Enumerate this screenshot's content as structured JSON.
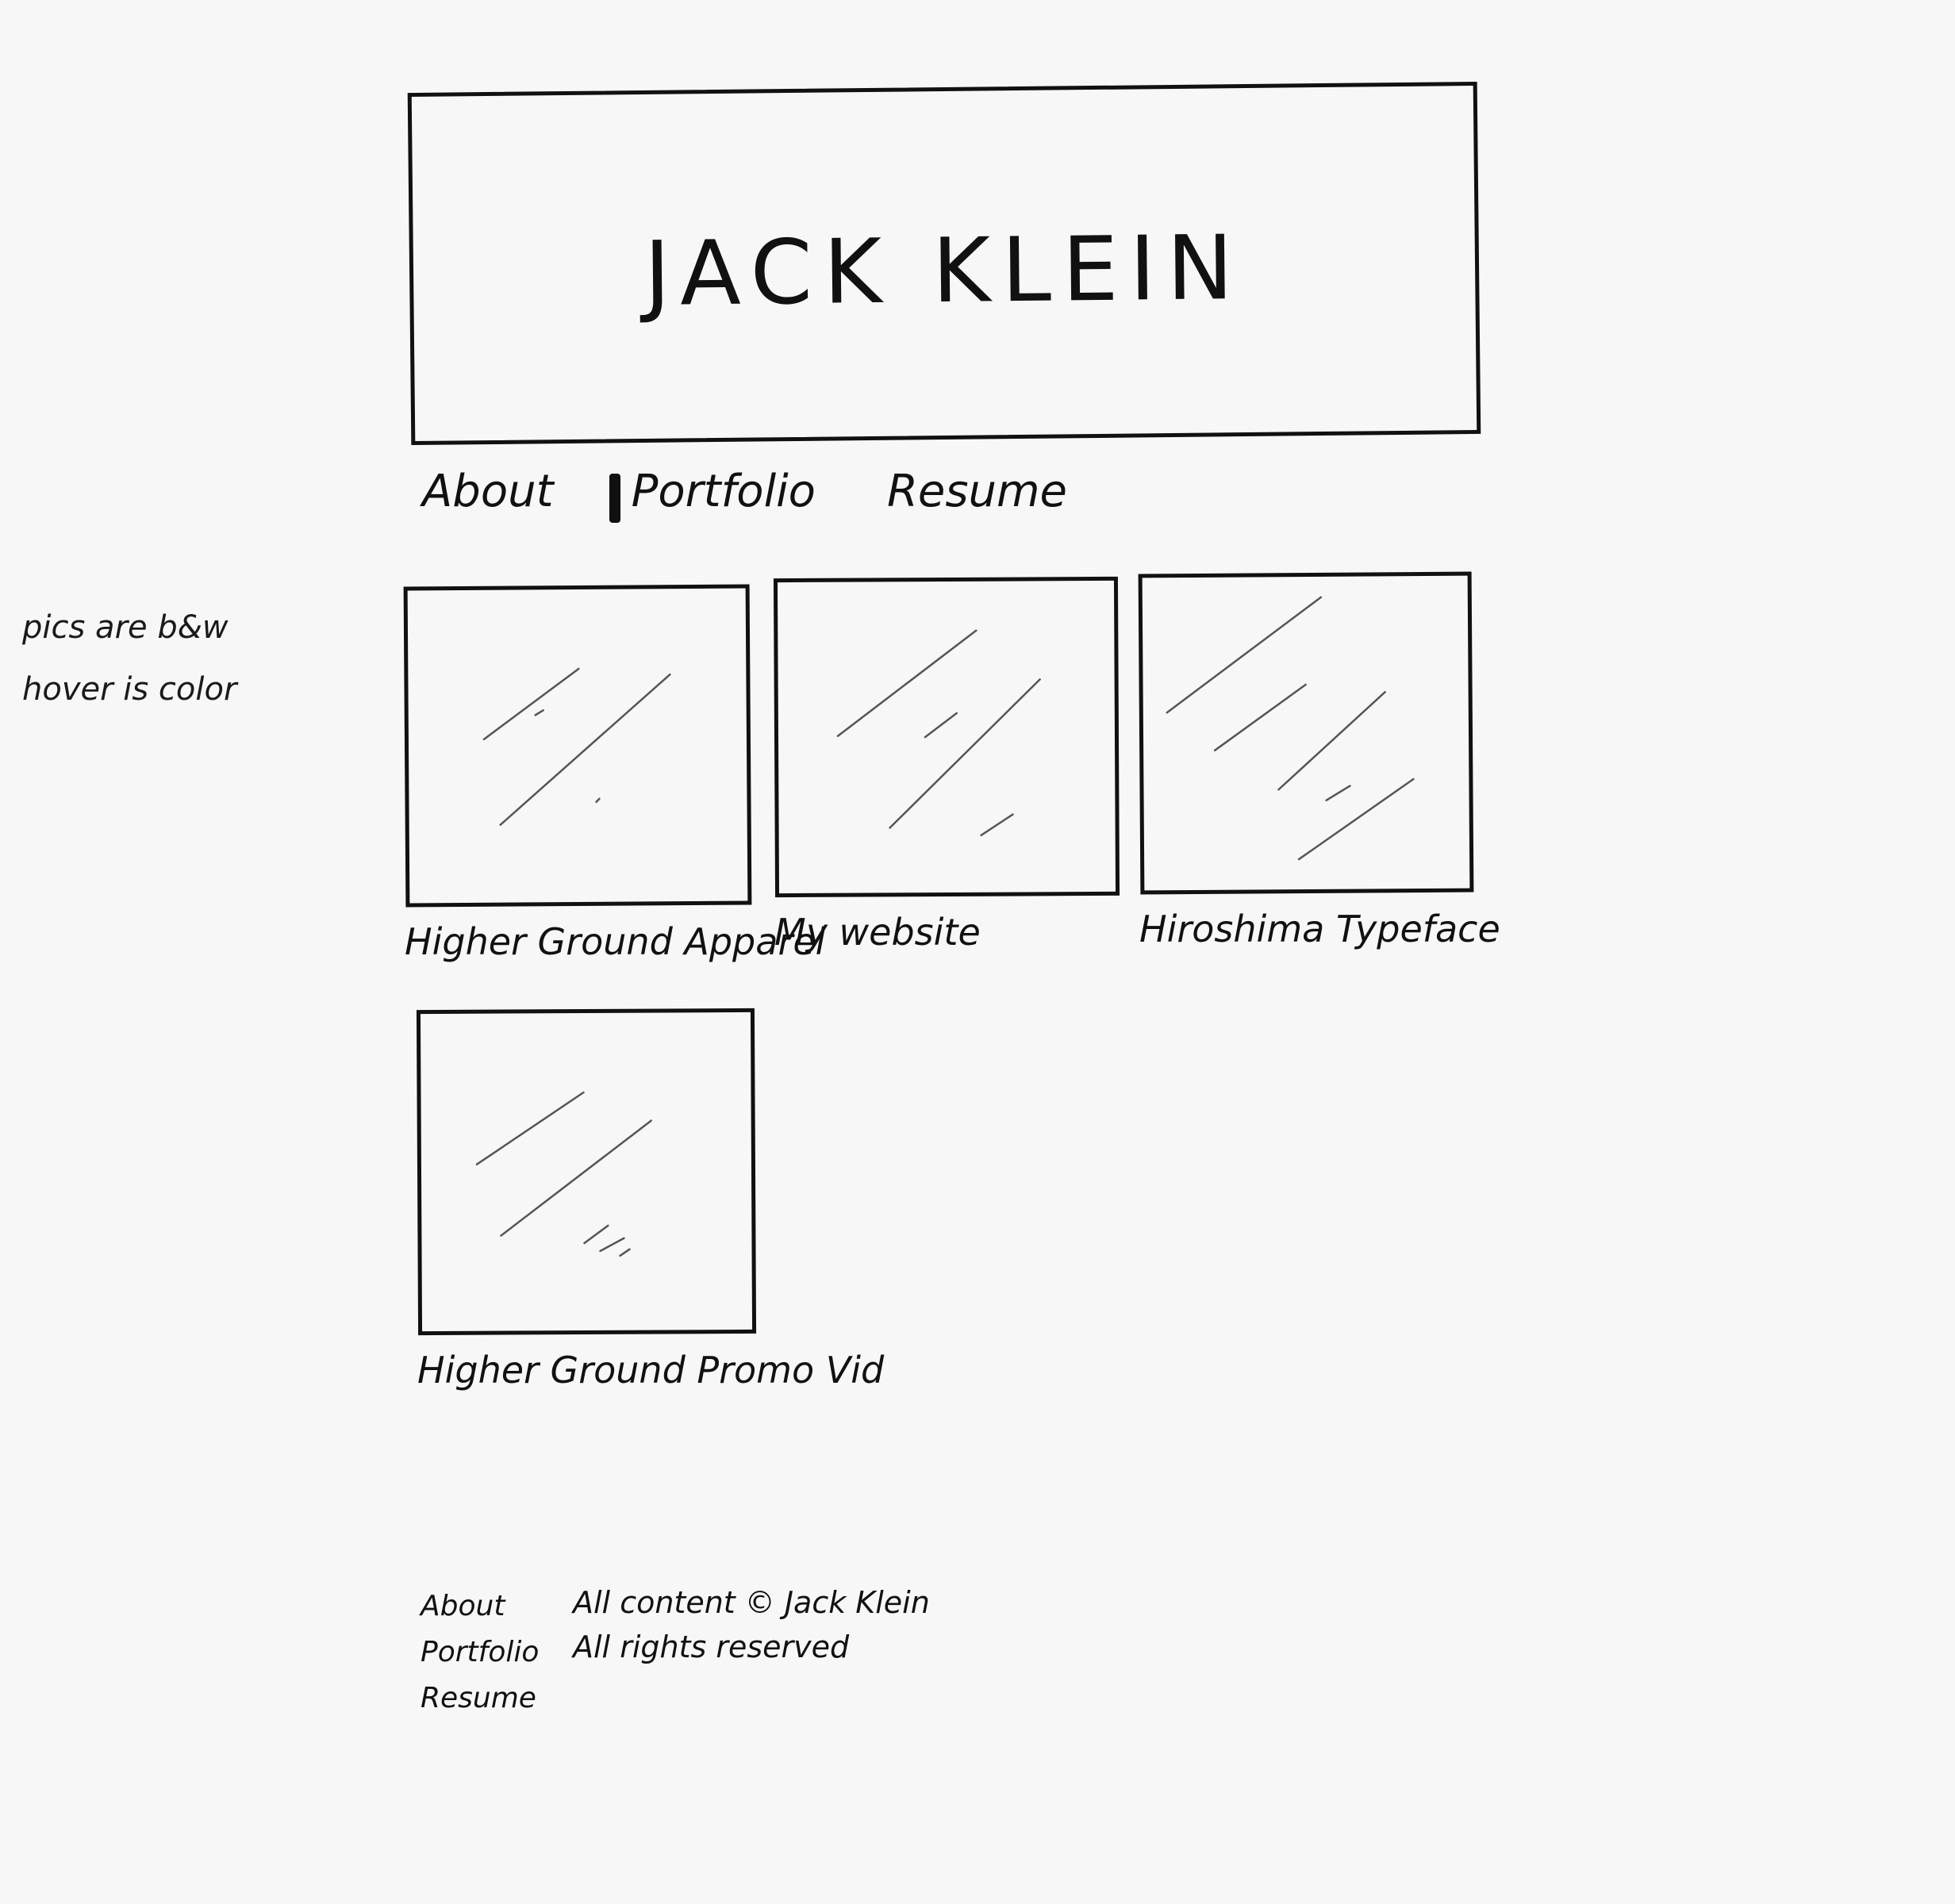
{
  "side_note": {
    "line1": "pics are b&w",
    "line2": "hover is color"
  },
  "header": {
    "title": "JACK KLEIN"
  },
  "nav": {
    "items": [
      {
        "label": "About"
      },
      {
        "label": "Portfolio",
        "active": true
      },
      {
        "label": "Resume"
      }
    ]
  },
  "projects": [
    {
      "caption": "Higher Ground Apparel",
      "image": "image-placeholder"
    },
    {
      "caption": "My website",
      "image": "image-placeholder"
    },
    {
      "caption": "Hiroshima Typeface",
      "image": "image-placeholder"
    },
    {
      "caption": "Higher Ground Promo Vid",
      "image": "image-placeholder"
    }
  ],
  "footer": {
    "nav": [
      {
        "label": "About"
      },
      {
        "label": "Portfolio"
      },
      {
        "label": "Resume"
      }
    ],
    "copyright_line1": "All content © Jack Klein",
    "copyright_line2": "All rights reserved"
  },
  "colors": {
    "ink": "#111111",
    "paper": "#f7f7f7",
    "pencil": "#555555"
  }
}
